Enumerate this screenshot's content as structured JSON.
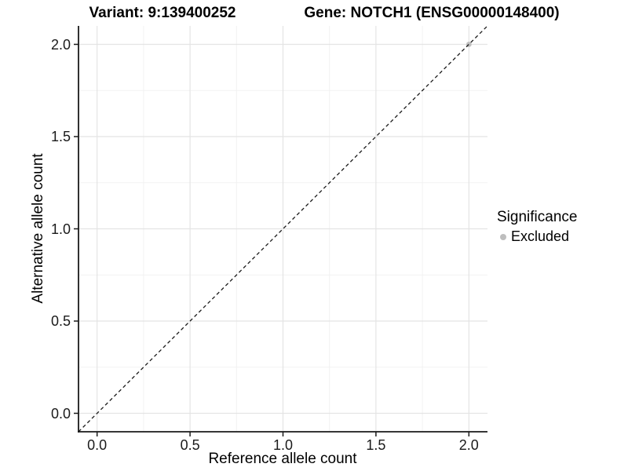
{
  "chart_data": {
    "type": "scatter",
    "titles": {
      "left": "Variant: 9:139400252",
      "right": "Gene: NOTCH1 (ENSG00000148400)"
    },
    "xlabel": "Reference allele count",
    "ylabel": "Alternative allele count",
    "xlim": [
      -0.1,
      2.1
    ],
    "ylim": [
      -0.1,
      2.1
    ],
    "x_ticks": {
      "values": [
        0,
        0.5,
        1,
        1.5,
        2
      ],
      "labels": [
        "0.0",
        "0.5",
        "1.0",
        "1.5",
        "2.0"
      ]
    },
    "y_ticks": {
      "values": [
        0,
        0.5,
        1,
        1.5,
        2
      ],
      "labels": [
        "0.0",
        "0.5",
        "1.0",
        "1.5",
        "2.0"
      ]
    },
    "minor_ticks": [
      0.25,
      0.75,
      1.25,
      1.75
    ],
    "grid": {
      "major": true,
      "minor": true
    },
    "reference_line": {
      "slope": 1,
      "intercept": 0,
      "style": "dashed"
    },
    "series": [
      {
        "name": "Excluded",
        "color": "#bebebe",
        "points": [
          [
            2.0,
            2.0
          ]
        ]
      }
    ],
    "legend": {
      "title": "Significance",
      "position": "right",
      "entries": [
        {
          "label": "Excluded",
          "color": "#bebebe"
        }
      ]
    },
    "colors": {
      "grid_major": "#e4e4e4",
      "grid_minor": "#f2f2f2",
      "axis_line": "#1a1a1a",
      "reference_line": "#1a1a1a",
      "background": "#ffffff"
    }
  }
}
